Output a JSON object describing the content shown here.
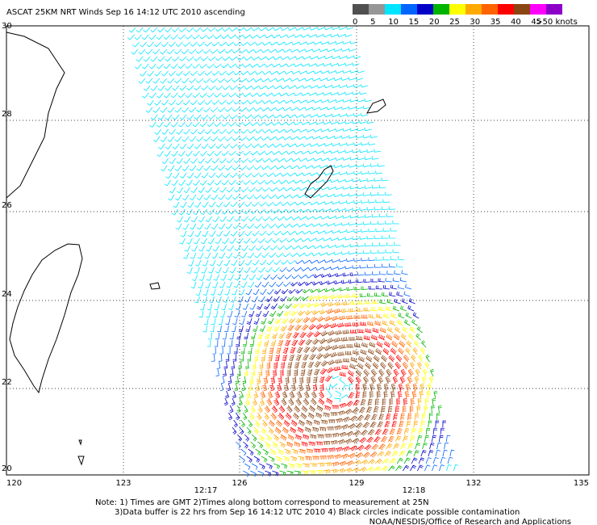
{
  "header": {
    "title": "ASCAT 25KM NRT Winds Sep 16 14:12 UTC 2010 ascending"
  },
  "colorbar": {
    "colors": [
      "#505050",
      "#969696",
      "#00e5ff",
      "#0064ff",
      "#0000c8",
      "#00b400",
      "#ffff00",
      "#ffaa00",
      "#ff6400",
      "#ff0000",
      "#8b4513",
      "#ff00ff",
      "#8c00c8"
    ],
    "labels": [
      "0",
      "5",
      "10",
      "15",
      "20",
      "25",
      "30",
      "35",
      "40",
      "45",
      ">50 knots"
    ]
  },
  "map": {
    "lon_ticks": [
      "120",
      "123",
      "126",
      "129",
      "132",
      "135"
    ],
    "lat_ticks": [
      "30",
      "28",
      "26",
      "24",
      "22",
      "20"
    ],
    "times": [
      "12:17",
      "12:18"
    ]
  },
  "notes": [
    "Note: 1) Times are GMT 2)Times along bottom correspond to measurement at 25N",
    "3)Data buffer is 22 hrs from Sep 16 14:12 UTC 2010 4) Black circles indicate possible contamination",
    "NOAA/NESDIS/Office of Research and Applications"
  ]
}
